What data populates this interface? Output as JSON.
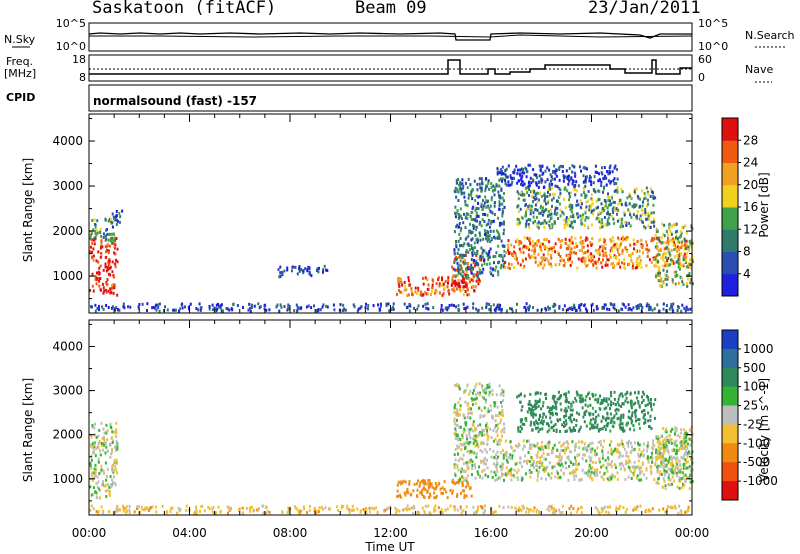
{
  "header": {
    "station": "Saskatoon (fitACF)",
    "beam": "Beam 09",
    "date": "23/Jan/2011"
  },
  "strip": {
    "nsky_label": "N.Sky",
    "nsky_ticks": [
      "10^5",
      "10^0"
    ],
    "nsearch_label": "N.Search",
    "nsearch_ticks": [
      "10^5",
      "10^0"
    ],
    "freq_label_1": "Freq.",
    "freq_label_2": "[MHz]",
    "freq_ticks": [
      "18",
      "8"
    ],
    "nave_label": "Nave",
    "nave_ticks": [
      "60",
      "0"
    ],
    "cpid_label": "CPID",
    "program": "normalsound (fast) -157"
  },
  "colors": {
    "power_scale": [
      "#1f1fe0",
      "#2a4fb0",
      "#2f7a6a",
      "#3fa24a",
      "#f2d020",
      "#f2a020",
      "#f05a10",
      "#e01010"
    ],
    "velocity_scale": [
      "#1a3fc0",
      "#2e6e9c",
      "#2e8a5a",
      "#33b433",
      "#bebebe",
      "#f2c030",
      "#f08a10",
      "#f05010",
      "#e01010"
    ]
  },
  "chart_data": [
    {
      "type": "heatmap",
      "ylabel": "Slant Range [km]",
      "xlabel": "Time UT",
      "ylim": [
        180,
        4600
      ],
      "xlim": [
        0,
        24
      ],
      "x_ticks": [
        "00:00",
        "04:00",
        "08:00",
        "12:00",
        "16:00",
        "20:00",
        "00:00"
      ],
      "y_ticks": [
        1000,
        2000,
        3000,
        4000
      ],
      "colorbar": {
        "label": "Power [dB]",
        "ticks": [
          4,
          8,
          12,
          16,
          20,
          24,
          28
        ],
        "range": [
          0,
          32
        ]
      },
      "echo_regions": [
        {
          "t": [
            0.0,
            1.1
          ],
          "r": [
            600,
            1900
          ],
          "level": 30
        },
        {
          "t": [
            0.0,
            1.0
          ],
          "r": [
            1800,
            2300
          ],
          "level": 12
        },
        {
          "t": [
            0.9,
            1.3
          ],
          "r": [
            2100,
            2500
          ],
          "level": 6
        },
        {
          "t": [
            0.0,
            24.0
          ],
          "r": [
            250,
            420
          ],
          "level": 5
        },
        {
          "t": [
            7.5,
            9.5
          ],
          "r": [
            1000,
            1250
          ],
          "level": 5
        },
        {
          "t": [
            12.2,
            15.2
          ],
          "r": [
            600,
            1000
          ],
          "level": 26
        },
        {
          "t": [
            14.4,
            15.6
          ],
          "r": [
            700,
            1500
          ],
          "level": 30
        },
        {
          "t": [
            14.5,
            16.5
          ],
          "r": [
            1000,
            3200
          ],
          "level": 9
        },
        {
          "t": [
            16.5,
            24.0
          ],
          "r": [
            1200,
            1900
          ],
          "level": 24
        },
        {
          "t": [
            17.0,
            22.5
          ],
          "r": [
            2100,
            3000
          ],
          "level": 12
        },
        {
          "t": [
            22.5,
            24.0
          ],
          "r": [
            800,
            2200
          ],
          "level": 15
        },
        {
          "t": [
            16.2,
            21.0
          ],
          "r": [
            3000,
            3500
          ],
          "level": 4
        }
      ]
    },
    {
      "type": "heatmap",
      "ylabel": "Slant Range [km]",
      "xlabel": "Time UT",
      "ylim": [
        180,
        4600
      ],
      "xlim": [
        0,
        24
      ],
      "x_ticks": [
        "00:00",
        "04:00",
        "08:00",
        "12:00",
        "16:00",
        "20:00",
        "00:00"
      ],
      "y_ticks": [
        1000,
        2000,
        3000,
        4000
      ],
      "colorbar": {
        "label": "Velocity [m s^-1]",
        "ticks": [
          1000,
          500,
          100,
          25,
          -25,
          -100,
          -500,
          -1000
        ]
      },
      "echo_regions": [
        {
          "t": [
            0.0,
            1.1
          ],
          "r": [
            600,
            1900
          ],
          "value": 0
        },
        {
          "t": [
            0.0,
            1.1
          ],
          "r": [
            1800,
            2300
          ],
          "value": 0
        },
        {
          "t": [
            0.0,
            24.0
          ],
          "r": [
            250,
            420
          ],
          "value": -60
        },
        {
          "t": [
            12.2,
            15.2
          ],
          "r": [
            600,
            1000
          ],
          "value": -200
        },
        {
          "t": [
            14.5,
            16.5
          ],
          "r": [
            1000,
            3200
          ],
          "value": 0
        },
        {
          "t": [
            16.5,
            24.0
          ],
          "r": [
            1000,
            1900
          ],
          "value": 0
        },
        {
          "t": [
            17.0,
            22.5
          ],
          "r": [
            2100,
            3000
          ],
          "value": 150
        },
        {
          "t": [
            22.5,
            24.0
          ],
          "r": [
            800,
            2200
          ],
          "value": 0
        }
      ]
    }
  ]
}
